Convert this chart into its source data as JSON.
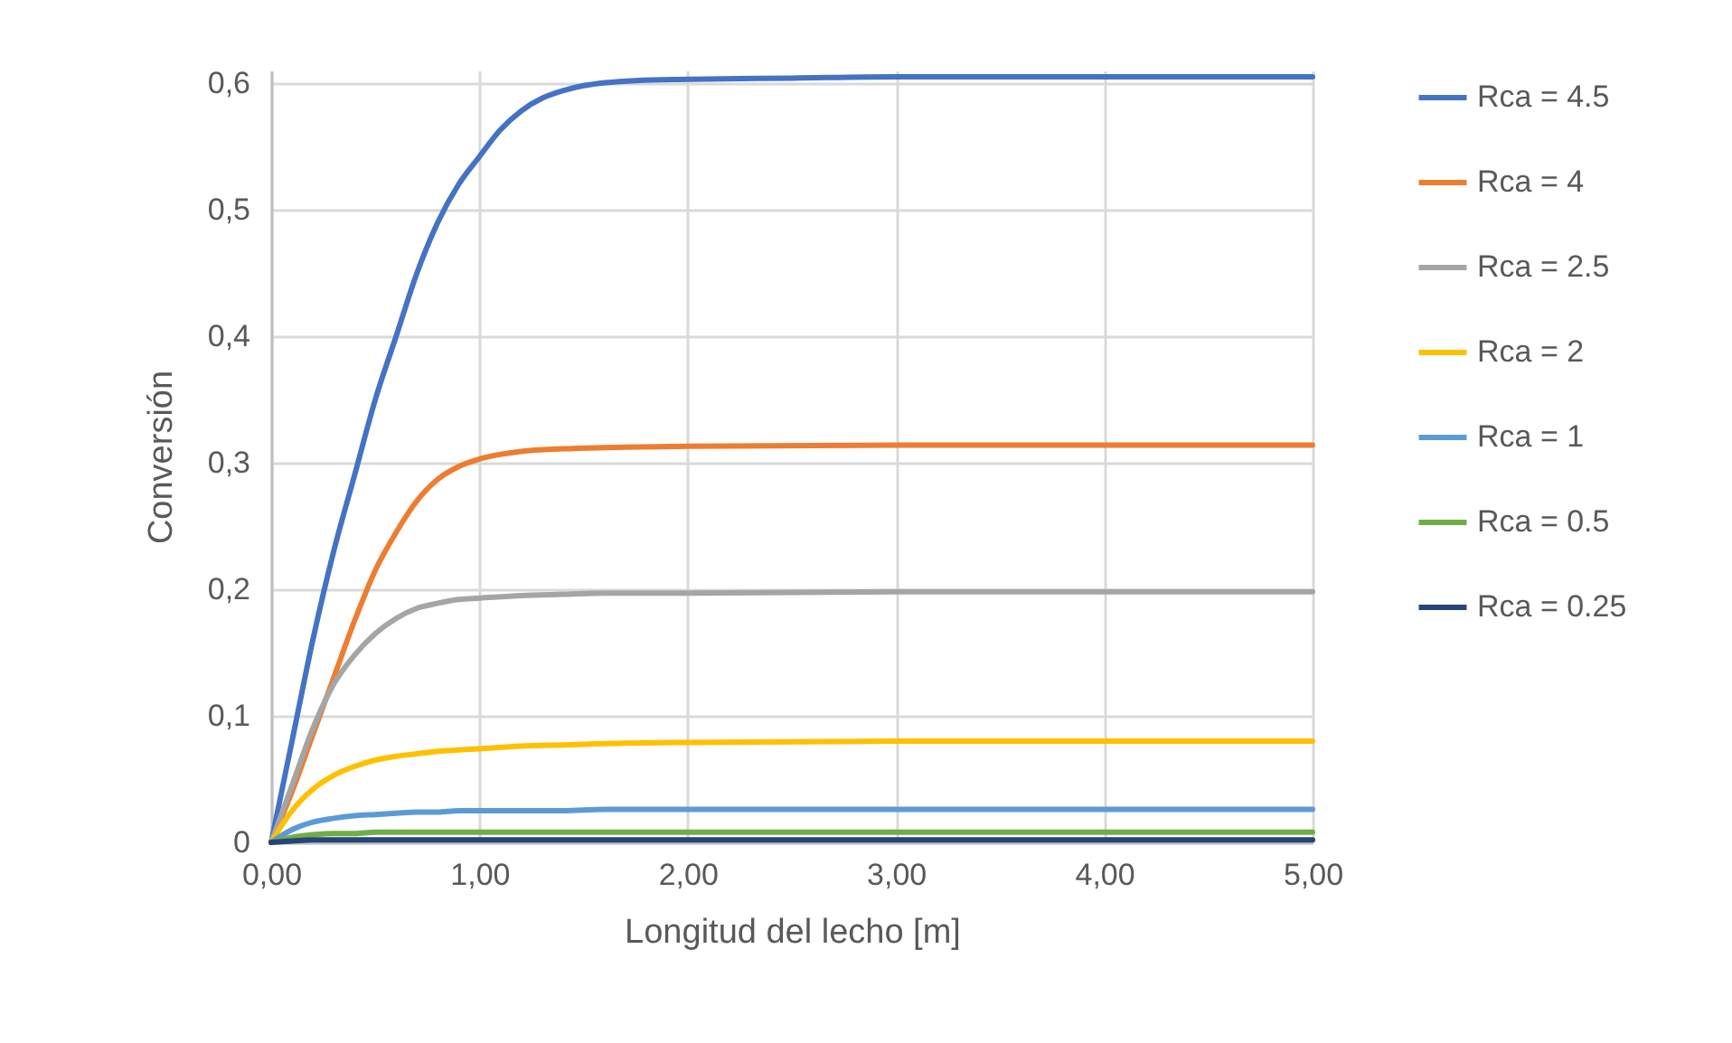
{
  "chart_data": {
    "type": "line",
    "xlabel": "Longitud del lecho [m]",
    "ylabel": "Conversión",
    "x": [
      0,
      0.1,
      0.2,
      0.3,
      0.4,
      0.5,
      0.6,
      0.7,
      0.8,
      0.9,
      1.0,
      1.2,
      1.4,
      1.6,
      2,
      3,
      5
    ],
    "series": [
      {
        "name": "Rca = 4.5",
        "color": "#4472c4",
        "x": [
          0,
          0.1,
          0.2,
          0.3,
          0.4,
          0.5,
          0.6,
          0.7,
          0.8,
          0.9,
          1.0,
          1.1,
          1.2,
          1.3,
          1.4,
          1.5,
          1.75,
          2,
          2.5,
          3,
          4,
          5
        ],
        "values": [
          0,
          0.08,
          0.16,
          0.23,
          0.29,
          0.35,
          0.4,
          0.45,
          0.49,
          0.52,
          0.542,
          0.563,
          0.578,
          0.588,
          0.594,
          0.598,
          0.602,
          0.603,
          0.604,
          0.605,
          0.605,
          0.605
        ]
      },
      {
        "name": "Rca = 4",
        "color": "#ed7d31",
        "values": [
          0,
          0.04,
          0.085,
          0.13,
          0.175,
          0.215,
          0.245,
          0.27,
          0.287,
          0.297,
          0.303,
          0.309,
          0.311,
          0.312,
          0.313,
          0.314,
          0.314
        ]
      },
      {
        "name": "Rca = 2.5",
        "color": "#a5a5a5",
        "values": [
          0,
          0.045,
          0.09,
          0.125,
          0.148,
          0.165,
          0.177,
          0.185,
          0.189,
          0.192,
          0.193,
          0.195,
          0.196,
          0.197,
          0.197,
          0.198,
          0.198
        ]
      },
      {
        "name": "Rca = 2",
        "color": "#ffc000",
        "values": [
          0,
          0.025,
          0.042,
          0.053,
          0.06,
          0.065,
          0.068,
          0.07,
          0.072,
          0.073,
          0.074,
          0.076,
          0.077,
          0.078,
          0.079,
          0.08,
          0.08
        ]
      },
      {
        "name": "Rca = 1",
        "color": "#5b9bd5",
        "values": [
          0,
          0.01,
          0.016,
          0.019,
          0.021,
          0.022,
          0.023,
          0.024,
          0.024,
          0.025,
          0.025,
          0.025,
          0.025,
          0.026,
          0.026,
          0.026,
          0.026
        ]
      },
      {
        "name": "Rca = 0.5",
        "color": "#70ad47",
        "values": [
          0,
          0.004,
          0.006,
          0.007,
          0.007,
          0.008,
          0.008,
          0.008,
          0.008,
          0.008,
          0.008,
          0.008,
          0.008,
          0.008,
          0.008,
          0.008,
          0.008
        ]
      },
      {
        "name": "Rca = 0.25",
        "color": "#264478",
        "values": [
          0,
          0.001,
          0.002,
          0.002,
          0.002,
          0.002,
          0.002,
          0.002,
          0.002,
          0.002,
          0.002,
          0.002,
          0.002,
          0.002,
          0.002,
          0.002,
          0.002
        ]
      }
    ],
    "xlim": [
      0,
      5
    ],
    "xticks": [
      {
        "value": 0,
        "label": "0,00"
      },
      {
        "value": 1,
        "label": "1,00"
      },
      {
        "value": 2,
        "label": "2,00"
      },
      {
        "value": 3,
        "label": "3,00"
      },
      {
        "value": 4,
        "label": "4,00"
      },
      {
        "value": 5,
        "label": "5,00"
      }
    ],
    "ylim": [
      0,
      0.61
    ],
    "yticks": [
      0,
      {
        "value": 0.1,
        "label": "0,1"
      },
      {
        "value": 0.2,
        "label": "0,2"
      },
      {
        "value": 0.3,
        "label": "0,3"
      },
      {
        "value": 0.4,
        "label": "0,4"
      },
      {
        "value": 0.5,
        "label": "0,5"
      },
      {
        "value": 0.6,
        "label": "0,6"
      }
    ],
    "grid": true,
    "legend": "right"
  }
}
